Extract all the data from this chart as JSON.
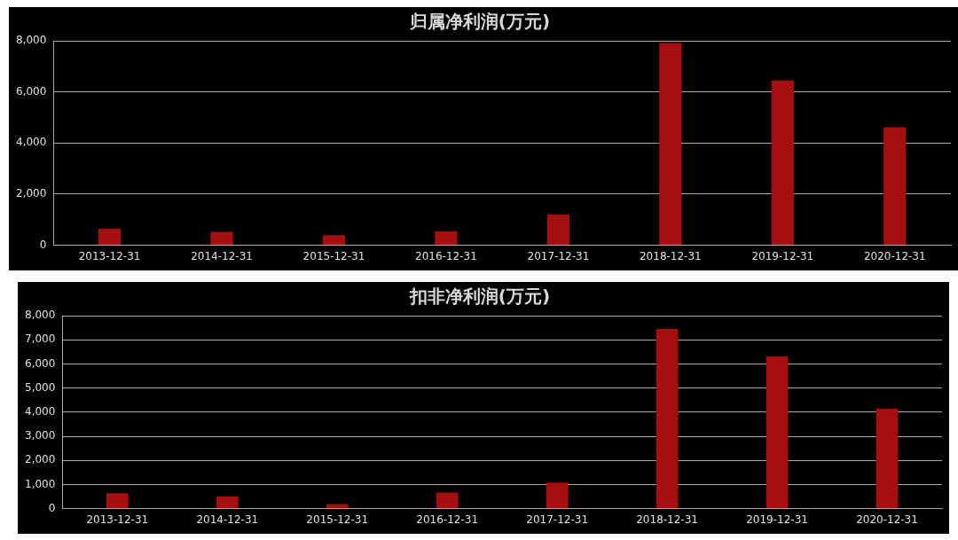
{
  "chart_data": [
    {
      "type": "bar",
      "title": "归属净利润(万元)",
      "categories": [
        "2013-12-31",
        "2014-12-31",
        "2015-12-31",
        "2016-12-31",
        "2017-12-31",
        "2018-12-31",
        "2019-12-31",
        "2020-12-31"
      ],
      "values": [
        650,
        520,
        390,
        550,
        1210,
        7910,
        6450,
        4620
      ],
      "color": "#a50f0f",
      "ylim": [
        0,
        8000
      ],
      "yticks": [
        0,
        {
          "value": 2000,
          "label": "2,000"
        },
        {
          "value": 4000,
          "label": "4,000"
        },
        {
          "value": 6000,
          "label": "6,000"
        },
        {
          "value": 8000,
          "label": "8,000"
        }
      ],
      "grid": "y",
      "legend": false
    },
    {
      "type": "bar",
      "title": "扣非净利润(万元)",
      "categories": [
        "2013-12-31",
        "2014-12-31",
        "2015-12-31",
        "2016-12-31",
        "2017-12-31",
        "2018-12-31",
        "2019-12-31",
        "2020-12-31"
      ],
      "values": [
        640,
        505,
        190,
        670,
        1080,
        7450,
        6310,
        4150
      ],
      "color": "#a50f0f",
      "ylim": [
        0,
        8000
      ],
      "yticks": [
        0,
        {
          "value": 1000,
          "label": "1,000"
        },
        {
          "value": 2000,
          "label": "2,000"
        },
        {
          "value": 3000,
          "label": "3,000"
        },
        {
          "value": 4000,
          "label": "4,000"
        },
        {
          "value": 5000,
          "label": "5,000"
        },
        {
          "value": 6000,
          "label": "6,000"
        },
        {
          "value": 7000,
          "label": "7,000"
        },
        {
          "value": 8000,
          "label": "8,000"
        }
      ],
      "grid": "y",
      "legend": false
    }
  ]
}
